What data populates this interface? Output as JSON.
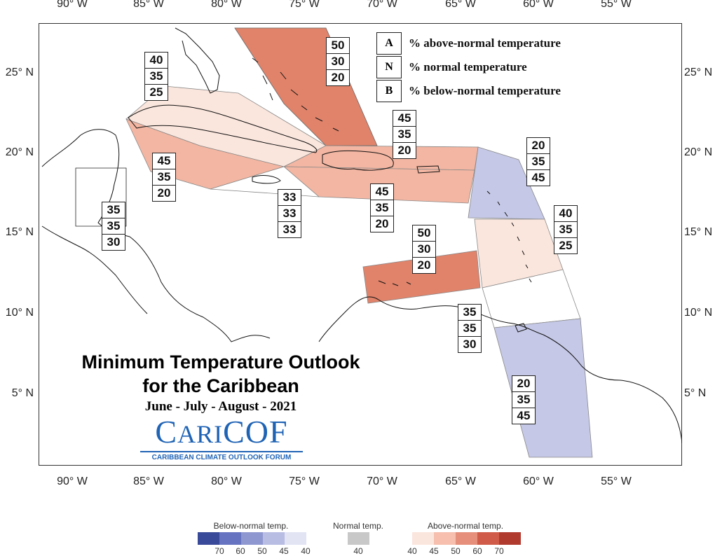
{
  "map": {
    "lon_ticks_top": [
      "90° W",
      "85° W",
      "80° W",
      "75° W",
      "70° W",
      "65° W",
      "60° W",
      "55° W"
    ],
    "lon_ticks_bottom": [
      "90° W",
      "85° W",
      "80° W",
      "75° W",
      "70° W",
      "65° W",
      "60° W",
      "55° W"
    ],
    "lat_ticks_left": [
      "25° N",
      "20° N",
      "15° N",
      "10° N",
      "5° N"
    ],
    "lat_ticks_right": [
      "25° N",
      "20° N",
      "15° N",
      "10° N",
      "5° N"
    ]
  },
  "legend": {
    "items": [
      {
        "key": "A",
        "label": "% above-normal temperature"
      },
      {
        "key": "N",
        "label": "% normal temperature"
      },
      {
        "key": "B",
        "label": "% below-normal temperature"
      }
    ]
  },
  "regions": [
    {
      "name": "bahamas",
      "a": "50",
      "n": "30",
      "b": "20",
      "color": "#e0836a"
    },
    {
      "name": "cuba",
      "a": "40",
      "n": "35",
      "b": "25",
      "color": "#fbe6dd"
    },
    {
      "name": "cayman-jamaica",
      "a": "45",
      "n": "35",
      "b": "20",
      "color": "#f3b6a2"
    },
    {
      "name": "hispaniola-north",
      "a": "45",
      "n": "35",
      "b": "20",
      "color": "#f3b6a2"
    },
    {
      "name": "hispaniola-south",
      "a": "45",
      "n": "35",
      "b": "20",
      "color": "#f3b6a2"
    },
    {
      "name": "caribbean-sea",
      "a": "33",
      "n": "33",
      "b": "33",
      "color": "#ffffff"
    },
    {
      "name": "belize",
      "a": "35",
      "n": "35",
      "b": "30",
      "color": "#ffffff"
    },
    {
      "name": "leeward-islands",
      "a": "20",
      "n": "35",
      "b": "45",
      "color": "#c5c8e6"
    },
    {
      "name": "windward-islands",
      "a": "40",
      "n": "35",
      "b": "25",
      "color": "#fbe6dd"
    },
    {
      "name": "abc-islands",
      "a": "50",
      "n": "30",
      "b": "20",
      "color": "#e0836a"
    },
    {
      "name": "trinidad",
      "a": "35",
      "n": "35",
      "b": "30",
      "color": "#ffffff"
    },
    {
      "name": "guianas",
      "a": "20",
      "n": "35",
      "b": "45",
      "color": "#c5c8e6"
    }
  ],
  "title": {
    "line1": "Minimum Temperature Outlook",
    "line2": "for the Caribbean",
    "period": "June - July - August - 2021"
  },
  "logo": {
    "word_c1": "C",
    "word_ari": "ARI",
    "word_cof": "COF",
    "subtitle": "CARIBBEAN CLIMATE OUTLOOK FORUM"
  },
  "colorbar": {
    "below": {
      "title": "Below-normal temp.",
      "labels": [
        "70",
        "60",
        "50",
        "45",
        "40"
      ],
      "colors": [
        "#3a4a9a",
        "#6673c0",
        "#8f97d0",
        "#b8bde3",
        "#e2e4f4"
      ]
    },
    "normal": {
      "title": "Normal temp.",
      "labels": [
        "40"
      ],
      "colors": [
        "#c8c8c8"
      ]
    },
    "above": {
      "title": "Above-normal temp.",
      "labels": [
        "40",
        "45",
        "50",
        "60",
        "70"
      ],
      "colors": [
        "#fbe6dd",
        "#f6bfae",
        "#e6907b",
        "#cf5b48",
        "#b03a2e"
      ]
    }
  }
}
